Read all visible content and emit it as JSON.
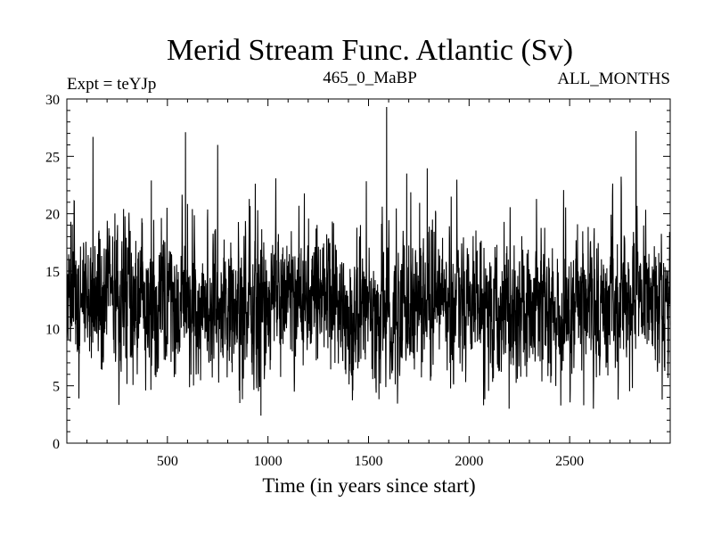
{
  "chart_data": {
    "type": "line",
    "title": "Merid Stream Func. Atlantic (Sv)",
    "subtitle_left": "Expt = teYJp",
    "subtitle_center": "465_0_MaBP",
    "subtitle_right": "ALL_MONTHS",
    "xlabel": "Time (in years since start)",
    "ylabel": "",
    "xlim": [
      0,
      3000
    ],
    "ylim": [
      0,
      30
    ],
    "xticks": [
      500,
      1000,
      1500,
      2000,
      2500
    ],
    "yticks": [
      0,
      5,
      10,
      15,
      20,
      25,
      30
    ],
    "grid": false,
    "legend": "none",
    "series": [
      {
        "color": "#000000",
        "x_start": 0,
        "x_step": 1,
        "mean": 12,
        "std": 3.2,
        "min": 2.4,
        "max": 29.3,
        "peaks": [
          {
            "x": 130,
            "y": 26.7
          },
          {
            "x": 420,
            "y": 22.9
          },
          {
            "x": 590,
            "y": 27.1
          },
          {
            "x": 750,
            "y": 26.0
          },
          {
            "x": 1590,
            "y": 29.3
          },
          {
            "x": 1690,
            "y": 23.5
          },
          {
            "x": 2830,
            "y": 27.2
          }
        ],
        "troughs": [
          {
            "x": 60,
            "y": 3.9
          },
          {
            "x": 860,
            "y": 3.5
          },
          {
            "x": 965,
            "y": 2.4
          },
          {
            "x": 2570,
            "y": 3.3
          },
          {
            "x": 2960,
            "y": 3.8
          }
        ]
      }
    ]
  }
}
